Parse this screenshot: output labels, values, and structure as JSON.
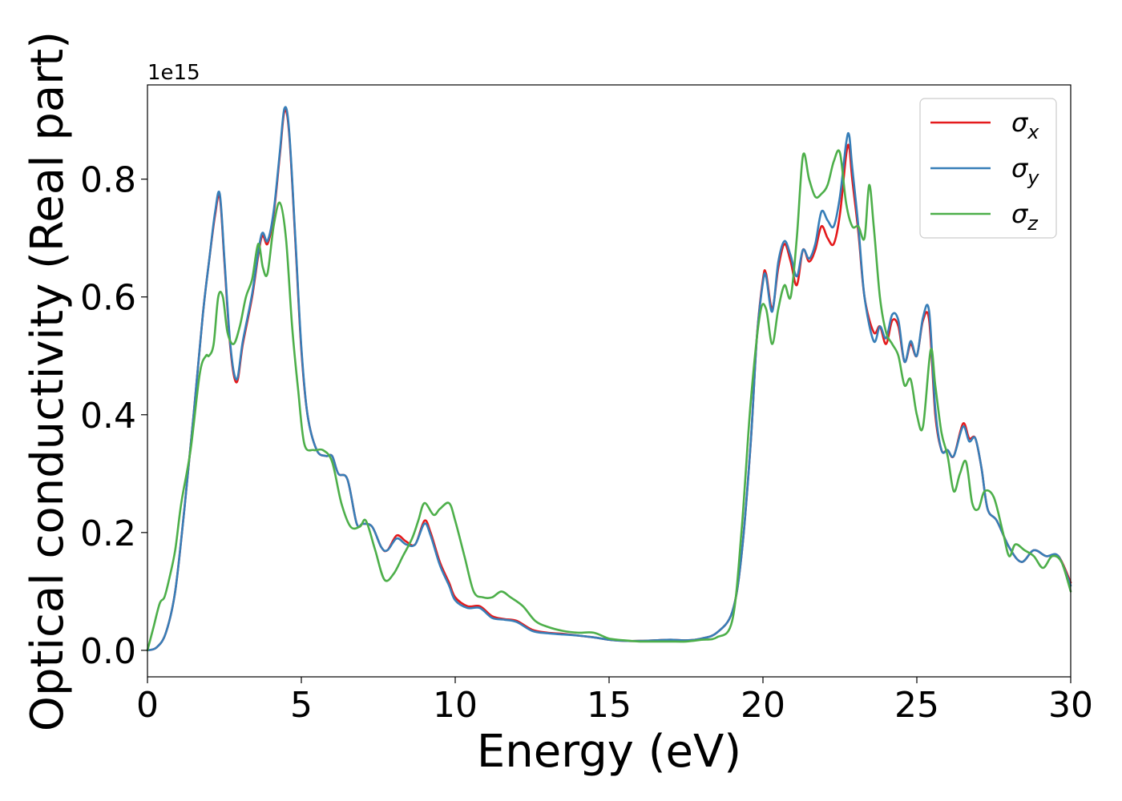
{
  "chart_data": {
    "type": "line",
    "xlabel": "Energy (eV)",
    "ylabel": "Optical conductivity (Real part)",
    "y_offset_label": "1e15",
    "xlim": [
      0,
      30
    ],
    "ylim": [
      -0.045,
      0.96
    ],
    "grid": false,
    "legend_position": "top-right",
    "x_ticks": [
      {
        "value": 0,
        "label": "0"
      },
      {
        "value": 5,
        "label": "5"
      },
      {
        "value": 10,
        "label": "10"
      },
      {
        "value": 15,
        "label": "15"
      },
      {
        "value": 20,
        "label": "20"
      },
      {
        "value": 25,
        "label": "25"
      },
      {
        "value": 30,
        "label": "30"
      }
    ],
    "y_ticks": [
      {
        "value": 0.0,
        "label": "0.0"
      },
      {
        "value": 0.2,
        "label": "0.2"
      },
      {
        "value": 0.4,
        "label": "0.4"
      },
      {
        "value": 0.6,
        "label": "0.6"
      },
      {
        "value": 0.8,
        "label": "0.8"
      }
    ],
    "series": [
      {
        "name": "σx",
        "symbol": "σ",
        "subscript": "x",
        "color": "#e41a1c",
        "x": [
          0,
          0.3,
          0.6,
          0.9,
          1.2,
          1.5,
          1.8,
          2.0,
          2.2,
          2.35,
          2.5,
          2.7,
          2.9,
          3.1,
          3.4,
          3.7,
          3.9,
          4.1,
          4.3,
          4.45,
          4.6,
          4.8,
          5.0,
          5.2,
          5.5,
          5.8,
          6.0,
          6.2,
          6.5,
          6.8,
          7.0,
          7.3,
          7.6,
          7.8,
          8.1,
          8.4,
          8.7,
          9.0,
          9.2,
          9.5,
          9.8,
          10.0,
          10.4,
          10.8,
          11.2,
          11.6,
          12.0,
          12.5,
          13.0,
          13.5,
          14.0,
          14.5,
          15.0,
          15.5,
          16.0,
          16.5,
          17.0,
          17.5,
          18.0,
          18.5,
          19.0,
          19.3,
          19.6,
          19.8,
          20.0,
          20.1,
          20.3,
          20.5,
          20.7,
          20.9,
          21.1,
          21.3,
          21.5,
          21.7,
          21.9,
          22.1,
          22.3,
          22.5,
          22.7,
          22.8,
          22.9,
          23.1,
          23.3,
          23.6,
          23.8,
          24.0,
          24.2,
          24.4,
          24.6,
          24.8,
          25.0,
          25.2,
          25.4,
          25.6,
          25.8,
          26.0,
          26.2,
          26.5,
          26.7,
          26.9,
          27.1,
          27.3,
          27.6,
          28.0,
          28.4,
          28.8,
          29.2,
          29.6,
          30.0
        ],
        "y": [
          0.0,
          0.005,
          0.03,
          0.1,
          0.24,
          0.4,
          0.57,
          0.66,
          0.74,
          0.77,
          0.66,
          0.51,
          0.455,
          0.52,
          0.6,
          0.7,
          0.69,
          0.74,
          0.84,
          0.915,
          0.88,
          0.7,
          0.51,
          0.4,
          0.34,
          0.33,
          0.33,
          0.3,
          0.29,
          0.215,
          0.215,
          0.21,
          0.175,
          0.17,
          0.195,
          0.185,
          0.18,
          0.22,
          0.2,
          0.15,
          0.115,
          0.09,
          0.075,
          0.075,
          0.058,
          0.053,
          0.05,
          0.035,
          0.03,
          0.028,
          0.025,
          0.022,
          0.018,
          0.016,
          0.016,
          0.017,
          0.018,
          0.017,
          0.02,
          0.03,
          0.065,
          0.16,
          0.35,
          0.53,
          0.63,
          0.64,
          0.58,
          0.65,
          0.69,
          0.66,
          0.62,
          0.68,
          0.66,
          0.68,
          0.72,
          0.7,
          0.69,
          0.74,
          0.84,
          0.855,
          0.8,
          0.71,
          0.6,
          0.54,
          0.55,
          0.52,
          0.56,
          0.55,
          0.49,
          0.52,
          0.5,
          0.56,
          0.56,
          0.4,
          0.34,
          0.34,
          0.33,
          0.385,
          0.36,
          0.36,
          0.31,
          0.24,
          0.22,
          0.175,
          0.15,
          0.17,
          0.16,
          0.16,
          0.115
        ]
      },
      {
        "name": "σy",
        "symbol": "σ",
        "subscript": "y",
        "color": "#377eb8",
        "x": [
          0,
          0.3,
          0.6,
          0.9,
          1.2,
          1.5,
          1.8,
          2.0,
          2.2,
          2.35,
          2.5,
          2.7,
          2.9,
          3.1,
          3.4,
          3.7,
          3.9,
          4.1,
          4.3,
          4.45,
          4.6,
          4.8,
          5.0,
          5.2,
          5.5,
          5.8,
          6.0,
          6.2,
          6.5,
          6.8,
          7.0,
          7.3,
          7.6,
          7.8,
          8.1,
          8.4,
          8.7,
          9.0,
          9.2,
          9.5,
          9.8,
          10.0,
          10.4,
          10.8,
          11.2,
          11.6,
          12.0,
          12.5,
          13.0,
          13.5,
          14.0,
          14.5,
          15.0,
          15.5,
          16.0,
          16.5,
          17.0,
          17.5,
          18.0,
          18.5,
          19.0,
          19.3,
          19.6,
          19.8,
          20.0,
          20.1,
          20.3,
          20.5,
          20.7,
          20.9,
          21.1,
          21.3,
          21.5,
          21.7,
          21.9,
          22.1,
          22.3,
          22.5,
          22.7,
          22.8,
          22.9,
          23.1,
          23.3,
          23.6,
          23.8,
          24.0,
          24.2,
          24.4,
          24.6,
          24.8,
          25.0,
          25.2,
          25.4,
          25.6,
          25.8,
          26.0,
          26.2,
          26.5,
          26.7,
          26.9,
          27.1,
          27.3,
          27.6,
          28.0,
          28.4,
          28.8,
          29.2,
          29.6,
          30.0
        ],
        "y": [
          0.0,
          0.005,
          0.03,
          0.1,
          0.24,
          0.4,
          0.57,
          0.66,
          0.745,
          0.775,
          0.665,
          0.515,
          0.46,
          0.525,
          0.605,
          0.705,
          0.695,
          0.745,
          0.845,
          0.92,
          0.885,
          0.705,
          0.515,
          0.4,
          0.34,
          0.33,
          0.33,
          0.3,
          0.29,
          0.215,
          0.215,
          0.21,
          0.175,
          0.17,
          0.19,
          0.18,
          0.18,
          0.215,
          0.195,
          0.145,
          0.11,
          0.085,
          0.072,
          0.072,
          0.055,
          0.052,
          0.048,
          0.033,
          0.029,
          0.027,
          0.025,
          0.022,
          0.018,
          0.016,
          0.016,
          0.017,
          0.018,
          0.017,
          0.02,
          0.03,
          0.065,
          0.16,
          0.35,
          0.53,
          0.625,
          0.635,
          0.575,
          0.66,
          0.695,
          0.67,
          0.635,
          0.68,
          0.665,
          0.69,
          0.745,
          0.73,
          0.72,
          0.77,
          0.86,
          0.875,
          0.82,
          0.72,
          0.6,
          0.525,
          0.55,
          0.53,
          0.57,
          0.56,
          0.49,
          0.525,
          0.5,
          0.565,
          0.575,
          0.41,
          0.34,
          0.34,
          0.33,
          0.38,
          0.355,
          0.36,
          0.31,
          0.24,
          0.22,
          0.175,
          0.15,
          0.17,
          0.16,
          0.16,
          0.11
        ]
      },
      {
        "name": "σz",
        "symbol": "σ",
        "subscript": "z",
        "color": "#4daf4a",
        "x": [
          0,
          0.2,
          0.4,
          0.55,
          0.7,
          0.9,
          1.1,
          1.4,
          1.7,
          1.9,
          2.0,
          2.15,
          2.3,
          2.45,
          2.6,
          2.8,
          3.0,
          3.2,
          3.4,
          3.6,
          3.75,
          3.9,
          4.1,
          4.3,
          4.5,
          4.7,
          4.9,
          5.1,
          5.4,
          5.7,
          6.0,
          6.3,
          6.6,
          6.9,
          7.1,
          7.4,
          7.7,
          8.0,
          8.3,
          8.6,
          8.8,
          9.0,
          9.3,
          9.5,
          9.8,
          10.0,
          10.3,
          10.6,
          10.9,
          11.2,
          11.5,
          11.8,
          12.2,
          12.6,
          13.0,
          13.5,
          14.0,
          14.5,
          15.0,
          15.5,
          16.0,
          16.5,
          17.0,
          17.5,
          18.0,
          18.5,
          19.0,
          19.3,
          19.6,
          19.9,
          20.1,
          20.3,
          20.5,
          20.7,
          20.9,
          21.1,
          21.3,
          21.5,
          21.7,
          21.9,
          22.1,
          22.3,
          22.5,
          22.7,
          22.9,
          23.1,
          23.3,
          23.45,
          23.6,
          23.8,
          24.0,
          24.2,
          24.4,
          24.6,
          24.8,
          25.0,
          25.2,
          25.45,
          25.6,
          25.8,
          26.0,
          26.2,
          26.4,
          26.6,
          26.8,
          27.0,
          27.2,
          27.5,
          27.8,
          28.0,
          28.2,
          28.5,
          28.8,
          29.1,
          29.4,
          29.7,
          30.0
        ],
        "y": [
          0.0,
          0.04,
          0.08,
          0.09,
          0.12,
          0.17,
          0.25,
          0.34,
          0.47,
          0.5,
          0.5,
          0.52,
          0.6,
          0.6,
          0.54,
          0.52,
          0.55,
          0.6,
          0.63,
          0.69,
          0.65,
          0.64,
          0.72,
          0.76,
          0.7,
          0.55,
          0.44,
          0.35,
          0.34,
          0.34,
          0.32,
          0.25,
          0.21,
          0.21,
          0.22,
          0.17,
          0.12,
          0.13,
          0.16,
          0.19,
          0.22,
          0.25,
          0.23,
          0.24,
          0.25,
          0.22,
          0.16,
          0.1,
          0.09,
          0.09,
          0.1,
          0.09,
          0.075,
          0.05,
          0.04,
          0.033,
          0.03,
          0.03,
          0.02,
          0.017,
          0.015,
          0.015,
          0.015,
          0.015,
          0.018,
          0.022,
          0.05,
          0.2,
          0.42,
          0.57,
          0.58,
          0.52,
          0.58,
          0.62,
          0.6,
          0.7,
          0.84,
          0.8,
          0.77,
          0.775,
          0.79,
          0.83,
          0.845,
          0.76,
          0.72,
          0.72,
          0.7,
          0.79,
          0.72,
          0.6,
          0.54,
          0.52,
          0.5,
          0.45,
          0.46,
          0.4,
          0.38,
          0.51,
          0.45,
          0.37,
          0.33,
          0.27,
          0.3,
          0.32,
          0.25,
          0.24,
          0.27,
          0.26,
          0.2,
          0.16,
          0.18,
          0.17,
          0.16,
          0.14,
          0.16,
          0.15,
          0.1
        ]
      }
    ]
  }
}
